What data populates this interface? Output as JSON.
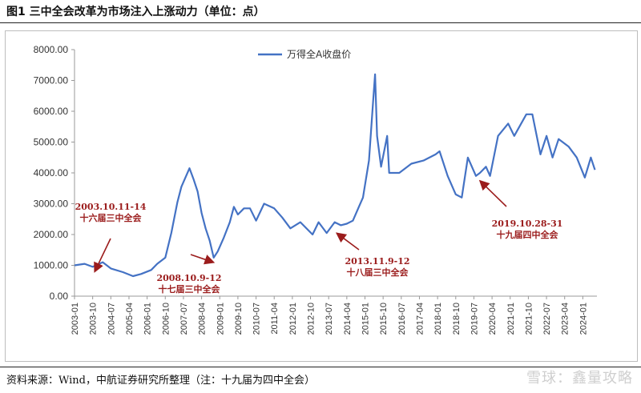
{
  "figure": {
    "title": "图1  三中全会改革为市场注入上涨动力（单位：点）",
    "source": "资料来源：Wind，中航证券研究所整理（注：十九届为四中全会）",
    "watermark": "雪球：鑫量攻略"
  },
  "colors": {
    "line": "#4472c4",
    "annotation": "#9b1c1c",
    "axis": "#999999"
  },
  "chart_data": {
    "type": "line",
    "series": [
      {
        "name": "万得全A收盘价",
        "points": [
          [
            "2003-01",
            1000
          ],
          [
            "2003-06",
            1050
          ],
          [
            "2003-10",
            950
          ],
          [
            "2004-03",
            1100
          ],
          [
            "2004-07",
            900
          ],
          [
            "2005-01",
            780
          ],
          [
            "2005-06",
            650
          ],
          [
            "2005-10",
            720
          ],
          [
            "2006-03",
            850
          ],
          [
            "2006-06",
            1050
          ],
          [
            "2006-10",
            1250
          ],
          [
            "2007-01",
            2050
          ],
          [
            "2007-04",
            3050
          ],
          [
            "2007-06",
            3550
          ],
          [
            "2007-10",
            4150
          ],
          [
            "2007-12",
            3800
          ],
          [
            "2008-02",
            3400
          ],
          [
            "2008-04",
            2700
          ],
          [
            "2008-06",
            2200
          ],
          [
            "2008-08",
            1800
          ],
          [
            "2008-10",
            1250
          ],
          [
            "2008-12",
            1450
          ],
          [
            "2009-03",
            1900
          ],
          [
            "2009-06",
            2400
          ],
          [
            "2009-08",
            2900
          ],
          [
            "2009-10",
            2650
          ],
          [
            "2010-01",
            2850
          ],
          [
            "2010-04",
            2850
          ],
          [
            "2010-07",
            2450
          ],
          [
            "2010-11",
            3000
          ],
          [
            "2011-04",
            2850
          ],
          [
            "2011-08",
            2550
          ],
          [
            "2011-12",
            2200
          ],
          [
            "2012-05",
            2400
          ],
          [
            "2012-11",
            2000
          ],
          [
            "2013-02",
            2400
          ],
          [
            "2013-06",
            2050
          ],
          [
            "2013-10",
            2400
          ],
          [
            "2014-01",
            2300
          ],
          [
            "2014-04",
            2350
          ],
          [
            "2014-07",
            2450
          ],
          [
            "2014-10",
            2900
          ],
          [
            "2014-12",
            3200
          ],
          [
            "2015-03",
            4400
          ],
          [
            "2015-05",
            6300
          ],
          [
            "2015-06",
            7200
          ],
          [
            "2015-07",
            5200
          ],
          [
            "2015-09",
            4200
          ],
          [
            "2015-12",
            5200
          ],
          [
            "2016-01",
            4000
          ],
          [
            "2016-06",
            4000
          ],
          [
            "2016-12",
            4300
          ],
          [
            "2017-06",
            4400
          ],
          [
            "2017-12",
            4600
          ],
          [
            "2018-02",
            4700
          ],
          [
            "2018-06",
            3900
          ],
          [
            "2018-10",
            3300
          ],
          [
            "2019-01",
            3200
          ],
          [
            "2019-04",
            4500
          ],
          [
            "2019-08",
            3900
          ],
          [
            "2019-10",
            4000
          ],
          [
            "2020-01",
            4200
          ],
          [
            "2020-03",
            3900
          ],
          [
            "2020-07",
            5200
          ],
          [
            "2020-12",
            5600
          ],
          [
            "2021-03",
            5200
          ],
          [
            "2021-09",
            5900
          ],
          [
            "2021-12",
            5900
          ],
          [
            "2022-04",
            4600
          ],
          [
            "2022-07",
            5200
          ],
          [
            "2022-10",
            4500
          ],
          [
            "2023-01",
            5100
          ],
          [
            "2023-06",
            4850
          ],
          [
            "2023-10",
            4500
          ],
          [
            "2024-02",
            3850
          ],
          [
            "2024-05",
            4500
          ],
          [
            "2024-07",
            4100
          ]
        ]
      }
    ],
    "x_ticks": [
      "2003-01",
      "2003-10",
      "2004-07",
      "2005-04",
      "2006-01",
      "2006-10",
      "2007-07",
      "2008-04",
      "2009-01",
      "2009-10",
      "2010-07",
      "2011-04",
      "2012-01",
      "2012-10",
      "2013-07",
      "2014-04",
      "2015-01",
      "2015-10",
      "2016-07",
      "2017-04",
      "2018-01",
      "2018-10",
      "2019-07",
      "2020-04",
      "2021-01",
      "2021-10",
      "2022-07",
      "2023-04",
      "2024-01"
    ],
    "ylim": [
      0,
      8000
    ],
    "y_ticks": [
      "0.00",
      "1000.00",
      "2000.00",
      "3000.00",
      "4000.00",
      "5000.00",
      "6000.00",
      "7000.00",
      "8000.00"
    ],
    "legend": {
      "label": "万得全A收盘价",
      "position": "top-center"
    },
    "grid": false,
    "annotations": [
      {
        "date_line": "2003.10.11-14",
        "event_line": "十六届三中全会",
        "target": [
          "2003-11",
          950
        ]
      },
      {
        "date_line": "2008.10.9-12",
        "event_line": "十七届三中全会",
        "target": [
          "2008-10",
          1250
        ]
      },
      {
        "date_line": "2013.11.9-12",
        "event_line": "十八届三中全会",
        "target": [
          "2013-11",
          2200
        ]
      },
      {
        "date_line": "2019.10.28-31",
        "event_line": "十九届四中全会",
        "target": [
          "2019-10",
          3900
        ]
      }
    ]
  }
}
